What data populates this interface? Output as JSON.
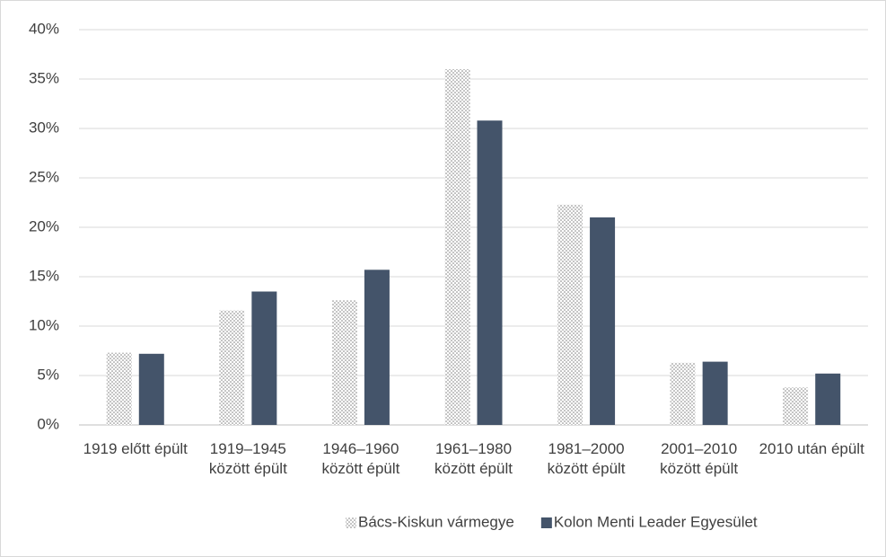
{
  "chart_data": {
    "type": "bar",
    "categories": [
      "1919 előtt épült",
      "1919–1945 között épült",
      "1946–1960 között épült",
      "1961–1980 között épült",
      "1981–2000 között épült",
      "2001–2010 között épült",
      "2010 után épült"
    ],
    "series": [
      {
        "name": "Bács-Kiskun vármegye",
        "color": "#7f7f7f",
        "pattern": "dots",
        "values": [
          7.3,
          11.6,
          12.6,
          36.0,
          22.3,
          6.3,
          3.8
        ]
      },
      {
        "name": "Kolon Menti Leader Egyesület",
        "color": "#44546a",
        "values": [
          7.2,
          13.5,
          15.7,
          30.8,
          21.0,
          6.4,
          5.2
        ]
      }
    ],
    "ylim": [
      0,
      40
    ],
    "yticks": [
      {
        "value": 0,
        "label": "0%"
      },
      {
        "value": 5,
        "label": "5%"
      },
      {
        "value": 10,
        "label": "10%"
      },
      {
        "value": 15,
        "label": "15%"
      },
      {
        "value": 20,
        "label": "20%"
      },
      {
        "value": 25,
        "label": "25%"
      },
      {
        "value": 30,
        "label": "30%"
      },
      {
        "value": 35,
        "label": "35%"
      },
      {
        "value": 40,
        "label": "40%"
      }
    ],
    "grid": true,
    "legend": "bottom"
  }
}
